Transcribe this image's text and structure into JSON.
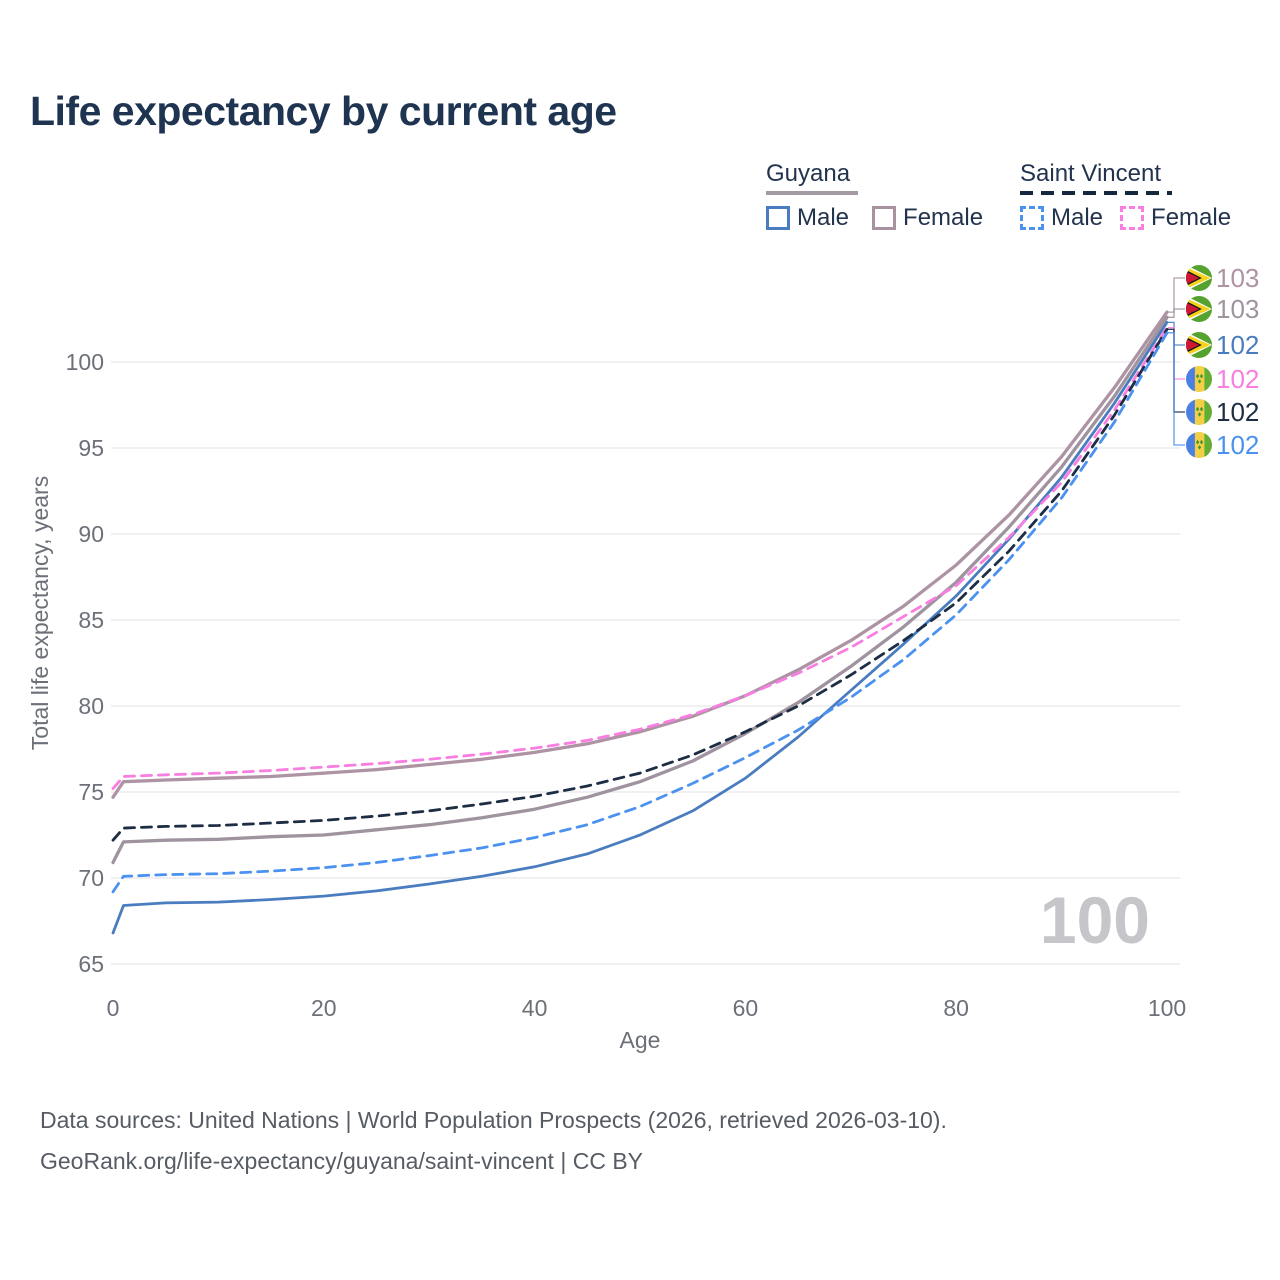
{
  "title": "Life expectancy by current age",
  "legend": {
    "groups": [
      {
        "label": "Guyana",
        "dash": "solid",
        "color": "#a49aa3",
        "items": [
          {
            "label": "Male",
            "color": "#4a7cc0",
            "dash": "solid"
          },
          {
            "label": "Female",
            "color": "#a8929f",
            "dash": "solid"
          }
        ]
      },
      {
        "label": "Saint Vincent",
        "dash": "dashed",
        "color": "#16283e",
        "items": [
          {
            "label": "Male",
            "color": "#4b92f0",
            "dash": "dashed"
          },
          {
            "label": "Female",
            "color": "#f87ee1",
            "dash": "dashed"
          }
        ]
      }
    ]
  },
  "watermark": "100",
  "icons": [
    "guyana-flag-icon",
    "saint-vincent-flag-icon"
  ],
  "footer": {
    "line1": "Data sources: United Nations | World Population Prospects (2026, retrieved 2026-03-10).",
    "line2": "GeoRank.org/life-expectancy/guyana/saint-vincent | CC BY"
  },
  "chart_data": {
    "type": "line",
    "title": "Life expectancy by current age",
    "xlabel": "Age",
    "ylabel": "Total life expectancy, years",
    "xlim": [
      0,
      100
    ],
    "ylim": [
      65,
      103.5
    ],
    "x_ticks": [
      0,
      20,
      40,
      60,
      80,
      100
    ],
    "y_ticks": [
      65,
      70,
      75,
      80,
      85,
      90,
      95,
      100
    ],
    "grid": "horizontal",
    "legend_position": "top-right",
    "x": [
      0,
      1,
      5,
      10,
      15,
      20,
      25,
      30,
      35,
      40,
      45,
      50,
      55,
      60,
      65,
      70,
      75,
      80,
      85,
      90,
      95,
      100
    ],
    "series": [
      {
        "id": "guyana-female",
        "name": "Guyana Female",
        "country": "Guyana",
        "sex": "Female",
        "flag": "guyana",
        "color": "#ad93a3",
        "dash": "solid",
        "end_label": "103",
        "values": [
          74.7,
          75.6,
          75.7,
          75.8,
          75.9,
          76.1,
          76.3,
          76.6,
          76.9,
          77.3,
          77.8,
          78.5,
          79.4,
          80.6,
          82.1,
          83.8,
          85.8,
          88.2,
          91.1,
          94.5,
          98.5,
          102.9
        ]
      },
      {
        "id": "guyana-total",
        "name": "Guyana Total",
        "country": "Guyana",
        "sex": "Total",
        "flag": "guyana",
        "color": "#9e939e",
        "dash": "solid",
        "end_label": "103",
        "values": [
          70.9,
          72.1,
          72.2,
          72.25,
          72.4,
          72.5,
          72.8,
          73.1,
          73.5,
          74.0,
          74.7,
          75.6,
          76.8,
          78.4,
          80.2,
          82.3,
          84.6,
          87.2,
          90.4,
          93.9,
          98.0,
          102.6
        ]
      },
      {
        "id": "guyana-male",
        "name": "Guyana Male",
        "country": "Guyana",
        "sex": "Male",
        "flag": "guyana",
        "color": "#4a7cc0",
        "dash": "solid",
        "end_label": "102",
        "values": [
          66.8,
          68.4,
          68.55,
          68.6,
          68.75,
          68.95,
          69.25,
          69.65,
          70.1,
          70.65,
          71.4,
          72.5,
          73.9,
          75.8,
          78.2,
          80.9,
          83.6,
          86.4,
          89.7,
          93.3,
          97.6,
          102.3
        ]
      },
      {
        "id": "saint-vincent-female",
        "name": "Saint Vincent Female",
        "country": "Saint Vincent",
        "sex": "Female",
        "flag": "saint-vincent",
        "color": "#f87ee1",
        "dash": "dashed",
        "end_label": "102",
        "values": [
          75.2,
          75.9,
          76.0,
          76.1,
          76.25,
          76.45,
          76.65,
          76.9,
          77.2,
          77.55,
          78.0,
          78.65,
          79.5,
          80.6,
          81.9,
          83.4,
          85.2,
          87.0,
          89.8,
          93.0,
          97.2,
          102.0
        ]
      },
      {
        "id": "saint-vincent-total",
        "name": "Saint Vincent Total",
        "country": "Saint Vincent",
        "sex": "Total",
        "flag": "saint-vincent",
        "color": "#1d2d44",
        "dash": "dashed",
        "end_label": "102",
        "values": [
          72.2,
          72.9,
          73.0,
          73.05,
          73.2,
          73.35,
          73.6,
          73.9,
          74.3,
          74.75,
          75.35,
          76.1,
          77.15,
          78.5,
          80.0,
          81.8,
          83.8,
          86.0,
          89.0,
          92.5,
          96.9,
          101.9
        ]
      },
      {
        "id": "saint-vincent-male",
        "name": "Saint Vincent Male",
        "country": "Saint Vincent",
        "sex": "Male",
        "flag": "saint-vincent",
        "color": "#4b92f0",
        "dash": "dashed",
        "end_label": "102",
        "values": [
          69.2,
          70.1,
          70.2,
          70.25,
          70.4,
          70.6,
          70.9,
          71.3,
          71.75,
          72.35,
          73.1,
          74.15,
          75.5,
          77.0,
          78.6,
          80.5,
          82.7,
          85.3,
          88.5,
          92.1,
          96.5,
          101.7
        ]
      }
    ]
  }
}
